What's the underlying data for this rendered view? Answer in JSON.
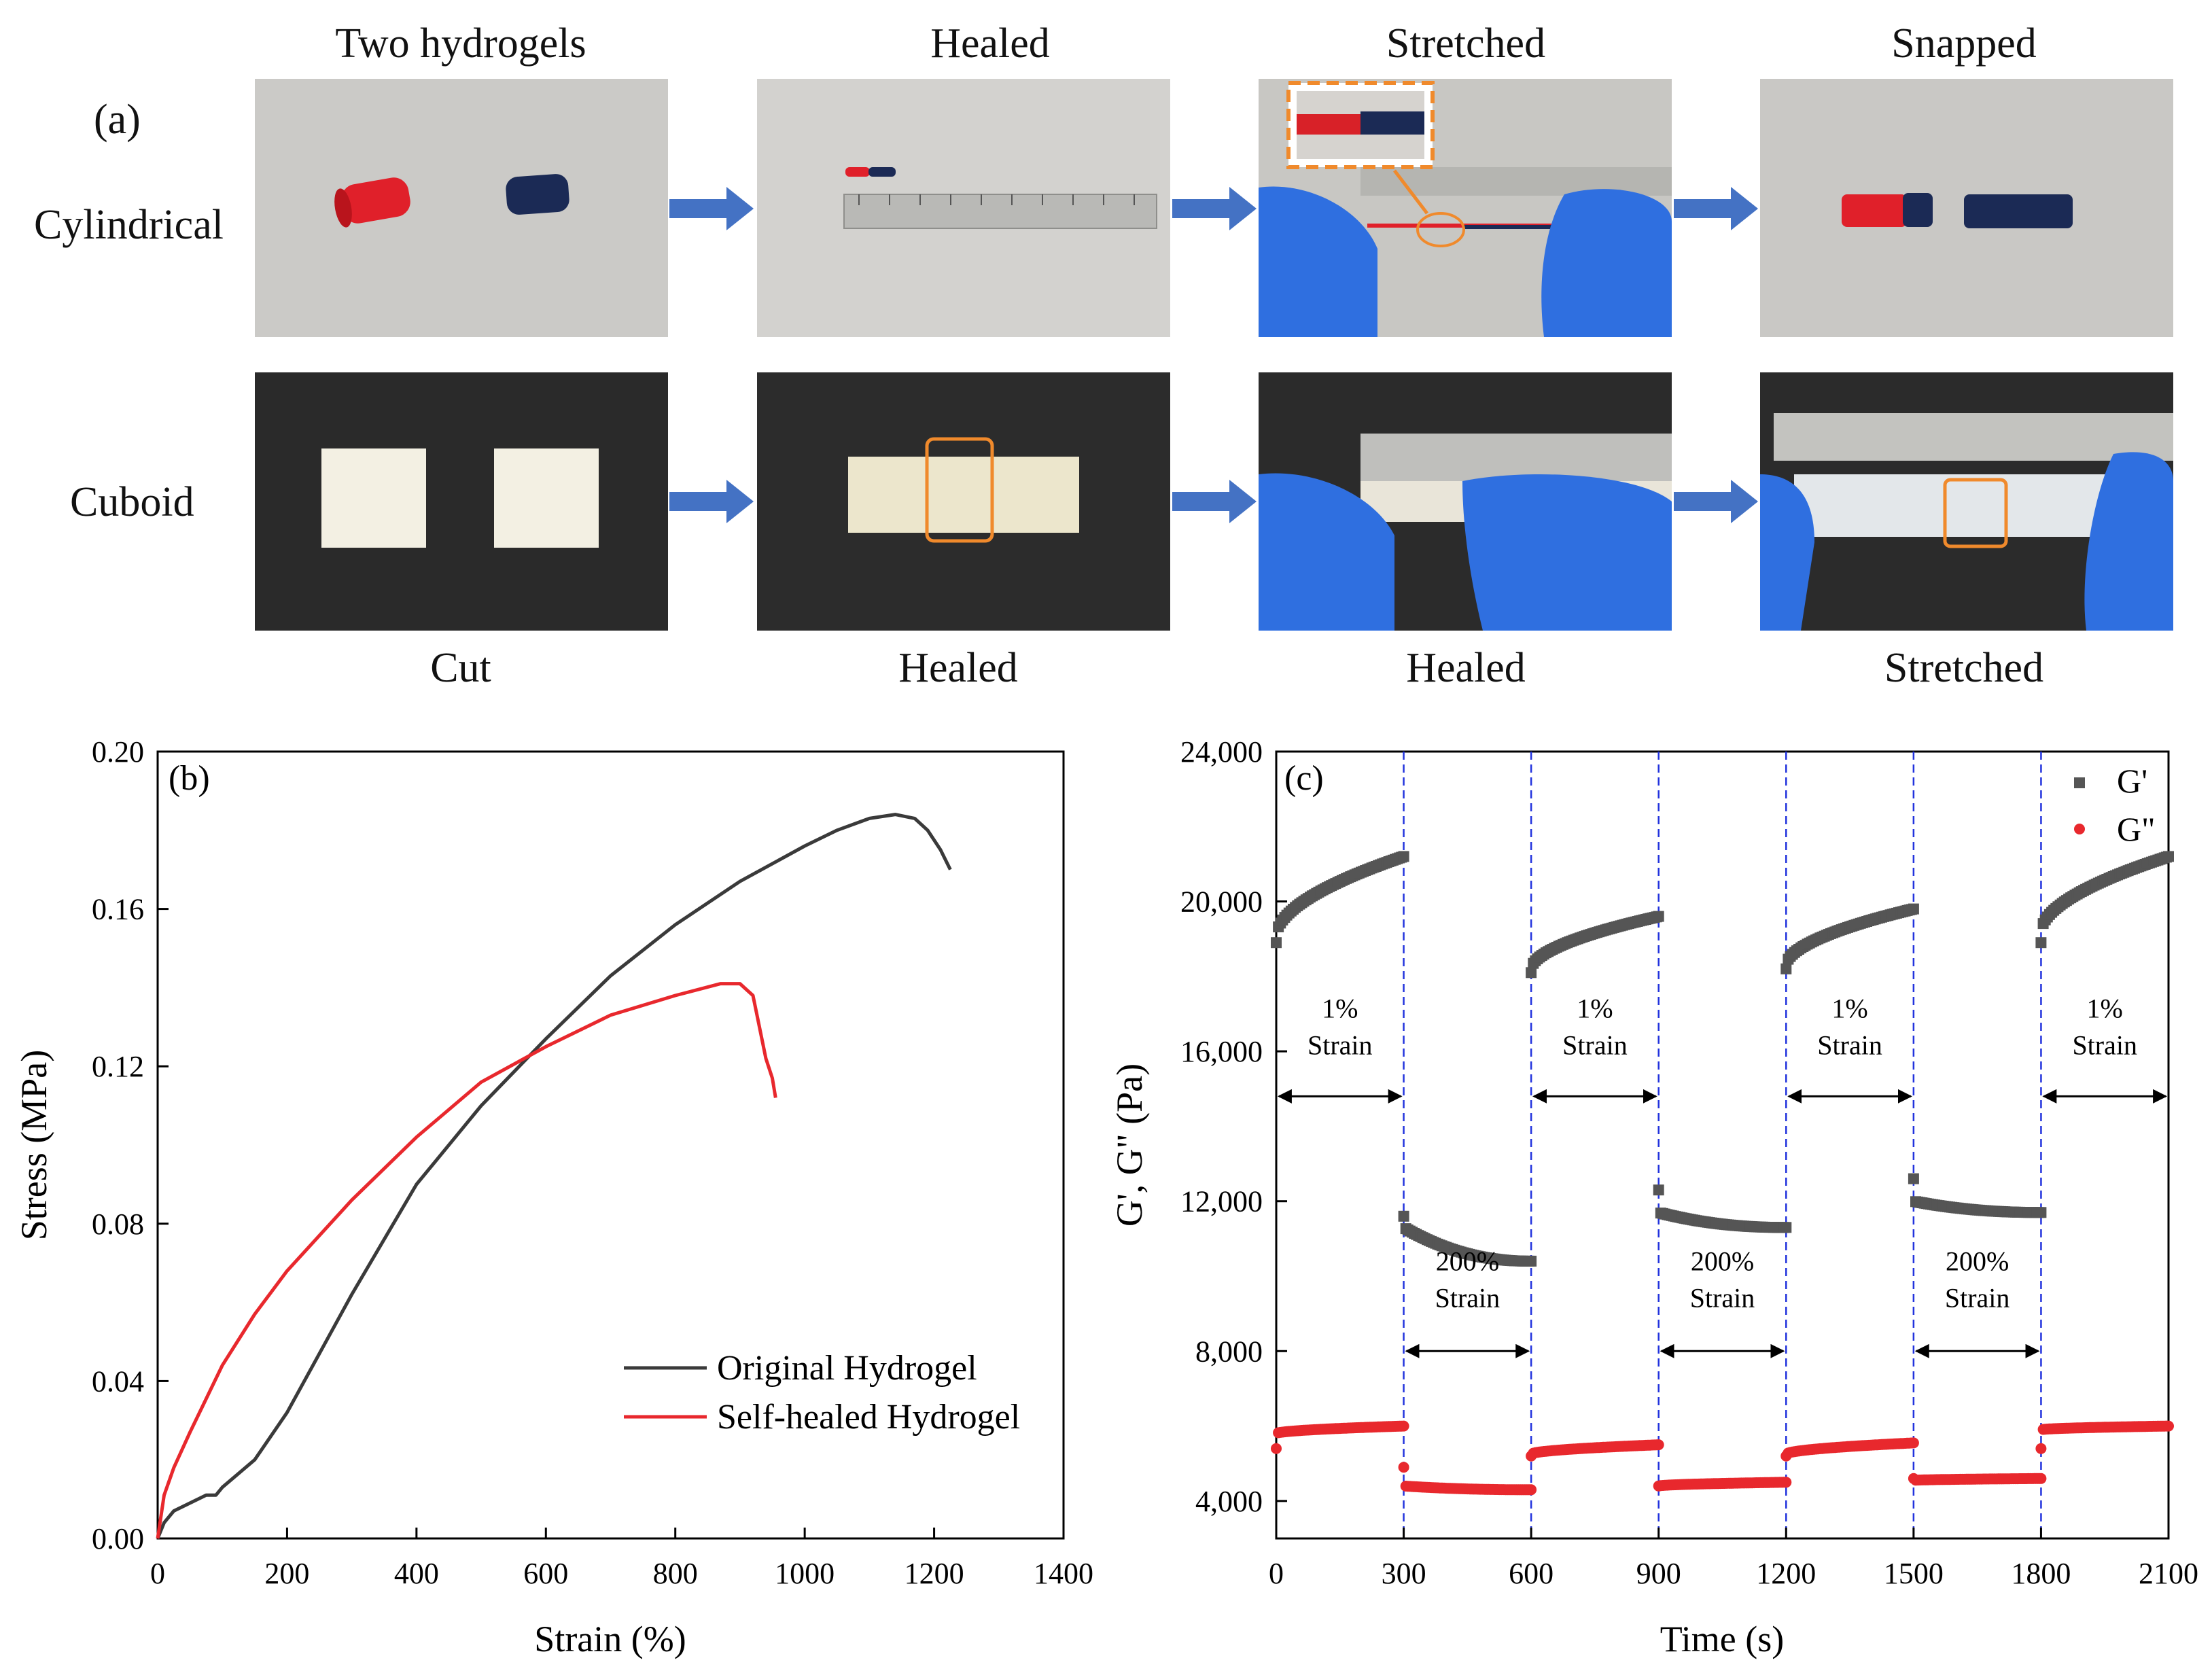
{
  "panel_a": {
    "label": "(a)",
    "top_headers": [
      "Two hydrogels",
      "Healed",
      "Stretched",
      "Snapped"
    ],
    "bottom_captions": [
      "Cut",
      "Healed",
      "Healed",
      "Stretched"
    ],
    "rows": [
      "Cylindrical",
      "Cuboid"
    ],
    "colors": {
      "arrow": "#4472c4",
      "red_gel": "#e0202a",
      "blue_gel": "#1b2a55",
      "glove": "#2f6fe0",
      "highlight": "#f08a2c"
    }
  },
  "chart_data": [
    {
      "type": "line",
      "panel_label": "(b)",
      "xlabel": "Strain (%)",
      "ylabel": "Stress (MPa)",
      "xlim": [
        0,
        1400
      ],
      "ylim": [
        0,
        0.2
      ],
      "x_ticks": [
        "0",
        "200",
        "400",
        "600",
        "800",
        "1000",
        "1200",
        "1400"
      ],
      "y_ticks": [
        "0.00",
        "0.04",
        "0.08",
        "0.12",
        "0.16",
        "0.20"
      ],
      "legend_position": "bottom-right",
      "series": [
        {
          "name": "Original Hydrogel",
          "color": "#3a3a3a",
          "x": [
            0,
            10,
            25,
            50,
            75,
            90,
            100,
            150,
            200,
            250,
            300,
            400,
            500,
            600,
            700,
            800,
            900,
            1000,
            1050,
            1100,
            1140,
            1170,
            1190,
            1210,
            1225
          ],
          "y": [
            0,
            0.004,
            0.007,
            0.009,
            0.011,
            0.011,
            0.013,
            0.02,
            0.032,
            0.047,
            0.062,
            0.09,
            0.11,
            0.127,
            0.143,
            0.156,
            0.167,
            0.176,
            0.18,
            0.183,
            0.184,
            0.183,
            0.18,
            0.175,
            0.17
          ]
        },
        {
          "name": "Self-healed Hydrogel",
          "color": "#e8282d",
          "x": [
            0,
            10,
            25,
            50,
            100,
            150,
            200,
            300,
            400,
            500,
            600,
            700,
            800,
            870,
            900,
            920,
            930,
            940,
            950,
            955
          ],
          "y": [
            0,
            0.011,
            0.018,
            0.027,
            0.044,
            0.057,
            0.068,
            0.086,
            0.102,
            0.116,
            0.125,
            0.133,
            0.138,
            0.141,
            0.141,
            0.138,
            0.13,
            0.122,
            0.117,
            0.112
          ]
        }
      ]
    },
    {
      "type": "scatter",
      "panel_label": "(c)",
      "xlabel": "Time (s)",
      "ylabel": "G', G\" (Pa)",
      "xlim": [
        0,
        2100
      ],
      "ylim": [
        3000,
        24000
      ],
      "x_ticks": [
        "0",
        "300",
        "600",
        "900",
        "1200",
        "1500",
        "1800",
        "2100"
      ],
      "y_ticks": [
        "4,000",
        "8,000",
        "12,000",
        "16,000",
        "20,000",
        "24,000"
      ],
      "y_tick_values": [
        4000,
        8000,
        12000,
        16000,
        20000,
        24000
      ],
      "legend_position": "top-right",
      "interval_boundaries": [
        300,
        600,
        900,
        1200,
        1500,
        1800
      ],
      "annotations": [
        {
          "line1": "1%",
          "line2": "Strain",
          "start": 0,
          "end": 300,
          "level": "high"
        },
        {
          "line1": "200%",
          "line2": "Strain",
          "start": 300,
          "end": 600,
          "level": "low"
        },
        {
          "line1": "1%",
          "line2": "Strain",
          "start": 600,
          "end": 900,
          "level": "high"
        },
        {
          "line1": "200%",
          "line2": "Strain",
          "start": 900,
          "end": 1200,
          "level": "low"
        },
        {
          "line1": "1%",
          "line2": "Strain",
          "start": 1200,
          "end": 1500,
          "level": "high"
        },
        {
          "line1": "200%",
          "line2": "Strain",
          "start": 1500,
          "end": 1800,
          "level": "low"
        },
        {
          "line1": "1%",
          "line2": "Strain",
          "start": 1800,
          "end": 2100,
          "level": "high"
        }
      ],
      "series": [
        {
          "name": "G'",
          "color": "#555555",
          "marker": "square",
          "segments": [
            {
              "t0": 0,
              "t1": 300,
              "first": 18900,
              "start": 19100,
              "end": 21200
            },
            {
              "t0": 300,
              "t1": 600,
              "first": 11600,
              "start": 11300,
              "end": 10400
            },
            {
              "t0": 600,
              "t1": 900,
              "first": 18100,
              "start": 18200,
              "end": 19600
            },
            {
              "t0": 900,
              "t1": 1200,
              "first": 12300,
              "start": 11700,
              "end": 11300
            },
            {
              "t0": 1200,
              "t1": 1500,
              "first": 18200,
              "start": 18300,
              "end": 19800
            },
            {
              "t0": 1500,
              "t1": 1800,
              "first": 12600,
              "start": 12000,
              "end": 11700
            },
            {
              "t0": 1800,
              "t1": 2100,
              "first": 18900,
              "start": 19200,
              "end": 21200
            }
          ]
        },
        {
          "name": "G\"",
          "color": "#e8282d",
          "marker": "circle",
          "segments": [
            {
              "t0": 0,
              "t1": 300,
              "first": 5400,
              "start": 5800,
              "end": 6000
            },
            {
              "t0": 300,
              "t1": 600,
              "first": 4900,
              "start": 4400,
              "end": 4300
            },
            {
              "t0": 600,
              "t1": 900,
              "first": 5200,
              "start": 5250,
              "end": 5500
            },
            {
              "t0": 900,
              "t1": 1200,
              "first": 4400,
              "start": 4400,
              "end": 4500
            },
            {
              "t0": 1200,
              "t1": 1500,
              "first": 5200,
              "start": 5250,
              "end": 5550
            },
            {
              "t0": 1500,
              "t1": 1800,
              "first": 4600,
              "start": 4550,
              "end": 4600
            },
            {
              "t0": 1800,
              "t1": 2100,
              "first": 5400,
              "start": 5900,
              "end": 6000
            }
          ]
        }
      ]
    }
  ]
}
